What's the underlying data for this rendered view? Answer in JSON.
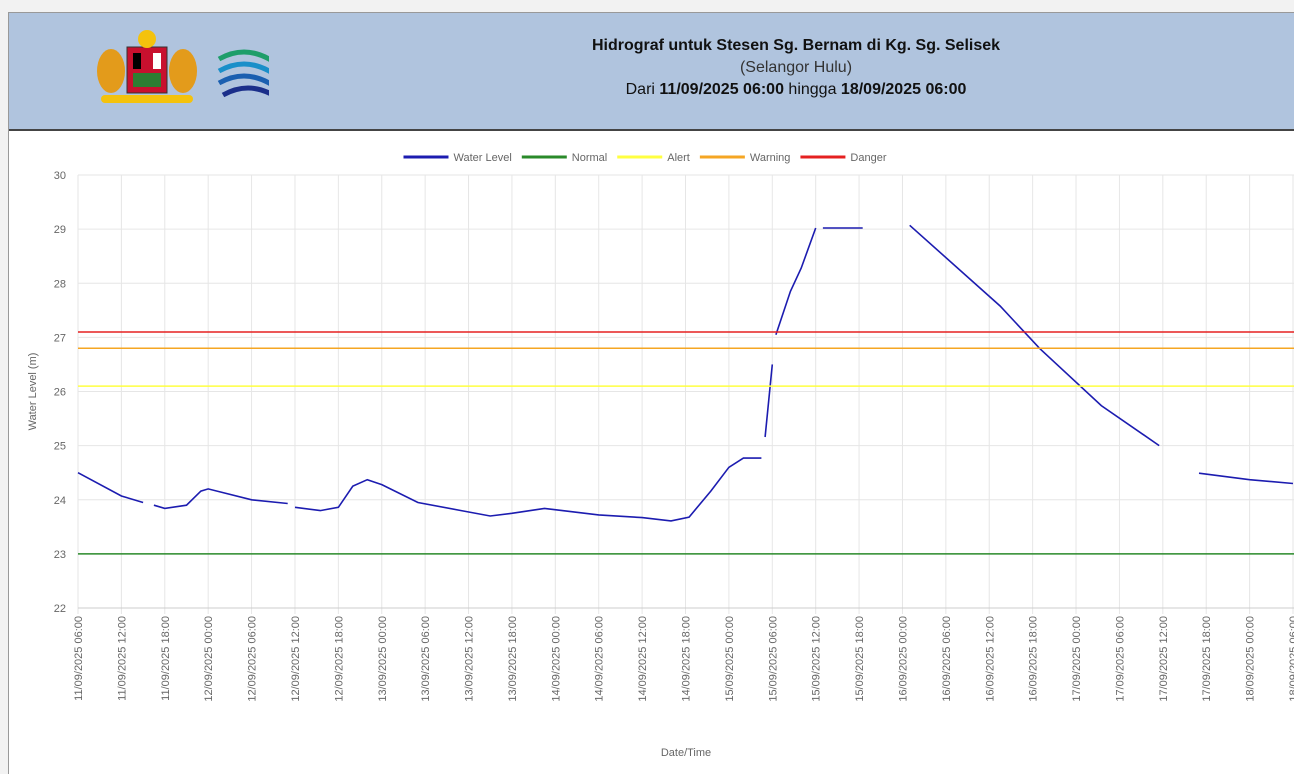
{
  "header": {
    "title": "Hidrograf untuk Stesen Sg. Bernam di Kg. Sg. Selisek",
    "subtitle": "(Selangor Hulu)",
    "range_from_word": "Dari",
    "range_from": "11/09/2025 06:00",
    "range_to_word": "hingga",
    "range_to": "18/09/2025 06:00"
  },
  "chart_data": {
    "type": "line",
    "ylabel": "Water Level (m)",
    "xlabel": "Date/Time",
    "ylim": [
      22,
      30
    ],
    "yticks": [
      22,
      23,
      24,
      25,
      26,
      27,
      28,
      29,
      30
    ],
    "grid": true,
    "legend": "top",
    "xlim": [
      "11/09/2025 06:00",
      "18/09/2025 06:00"
    ],
    "xticks": [
      "11/09/2025 06:00",
      "11/09/2025 12:00",
      "11/09/2025 18:00",
      "12/09/2025 00:00",
      "12/09/2025 06:00",
      "12/09/2025 12:00",
      "12/09/2025 18:00",
      "13/09/2025 00:00",
      "13/09/2025 06:00",
      "13/09/2025 12:00",
      "13/09/2025 18:00",
      "14/09/2025 00:00",
      "14/09/2025 06:00",
      "14/09/2025 12:00",
      "14/09/2025 18:00",
      "15/09/2025 00:00",
      "15/09/2025 06:00",
      "15/09/2025 12:00",
      "15/09/2025 18:00",
      "16/09/2025 00:00",
      "16/09/2025 06:00",
      "16/09/2025 12:00",
      "16/09/2025 18:00",
      "17/09/2025 00:00",
      "17/09/2025 06:00",
      "17/09/2025 12:00",
      "17/09/2025 18:00",
      "18/09/2025 00:00",
      "18/09/2025 06:00"
    ],
    "series": [
      {
        "name": "Water Level",
        "color": "#1c1cb0",
        "x": [
          "11/09/2025 06:00",
          "11/09/2025 12:00",
          "11/09/2025 15:00",
          null,
          "11/09/2025 16:30",
          "11/09/2025 18:00",
          "11/09/2025 21:00",
          "11/09/2025 23:00",
          "12/09/2025 00:00",
          "12/09/2025 06:00",
          "12/09/2025 11:00",
          null,
          "12/09/2025 12:00",
          "12/09/2025 15:30",
          "12/09/2025 18:00",
          "12/09/2025 20:00",
          "12/09/2025 22:00",
          "13/09/2025 00:00",
          "13/09/2025 05:00",
          "13/09/2025 11:00",
          "13/09/2025 15:00",
          "13/09/2025 18:00",
          "13/09/2025 22:30",
          "14/09/2025 06:00",
          "14/09/2025 12:00",
          "14/09/2025 16:00",
          "14/09/2025 18:30",
          "14/09/2025 21:30",
          "15/09/2025 00:00",
          "15/09/2025 02:00",
          "15/09/2025 04:30",
          null,
          "15/09/2025 05:00",
          "15/09/2025 06:00",
          null,
          "15/09/2025 06:30",
          "15/09/2025 08:30",
          "15/09/2025 10:00",
          "15/09/2025 12:00",
          null,
          "15/09/2025 13:00",
          "15/09/2025 18:30",
          null,
          "16/09/2025 01:00",
          "16/09/2025 13:30",
          "16/09/2025 19:00",
          "17/09/2025 03:30",
          "17/09/2025 11:30",
          null,
          "17/09/2025 17:00",
          "18/09/2025 00:00",
          "18/09/2025 06:00"
        ],
        "values": [
          24.5,
          24.07,
          23.95,
          null,
          23.9,
          23.84,
          23.9,
          24.16,
          24.2,
          24.0,
          23.93,
          null,
          23.86,
          23.8,
          23.86,
          24.25,
          24.37,
          24.28,
          23.95,
          23.8,
          23.7,
          23.75,
          23.84,
          23.72,
          23.67,
          23.61,
          23.68,
          24.16,
          24.6,
          24.77,
          24.77,
          null,
          25.16,
          26.5,
          null,
          27.05,
          27.85,
          28.28,
          29.02,
          null,
          29.02,
          29.02,
          null,
          29.07,
          27.58,
          26.79,
          25.74,
          25.0,
          null,
          24.49,
          24.37,
          24.3
        ]
      },
      {
        "name": "Normal",
        "color": "#2a8a2a",
        "value": 23
      },
      {
        "name": "Alert",
        "color": "#ffff40",
        "value": 26.1
      },
      {
        "name": "Warning",
        "color": "#f5a623",
        "value": 26.8
      },
      {
        "name": "Danger",
        "color": "#e52020",
        "value": 27.1
      }
    ]
  }
}
